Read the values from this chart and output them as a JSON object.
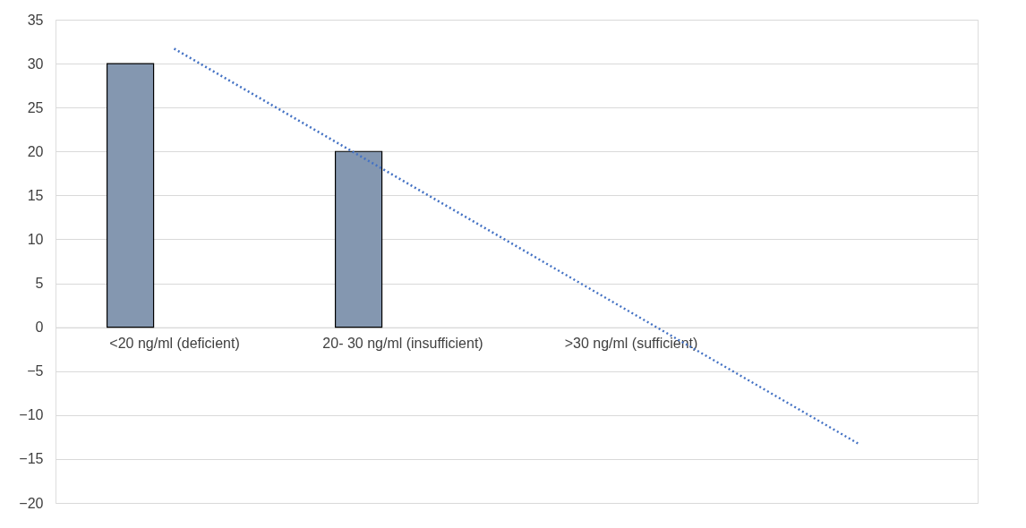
{
  "chart_data": {
    "type": "bar",
    "categories": [
      "<20 ng/ml (deficient)",
      "20- 30 ng/ml (insufficient)",
      ">30 ng/ml (sufficient)",
      null
    ],
    "series": [
      {
        "color": "#8497b0",
        "values": [
          30,
          20,
          null,
          null
        ]
      },
      {
        "type": "line",
        "color": "#4472c4",
        "line_style": "dotted",
        "values": [
          31.7,
          16.7,
          1.7,
          -13.3
        ]
      }
    ],
    "ylim": [
      -20,
      35
    ],
    "yticks": [
      -20,
      -15,
      -10,
      -5,
      0,
      5,
      10,
      15,
      20,
      25,
      30,
      35
    ],
    "grid": "y"
  }
}
